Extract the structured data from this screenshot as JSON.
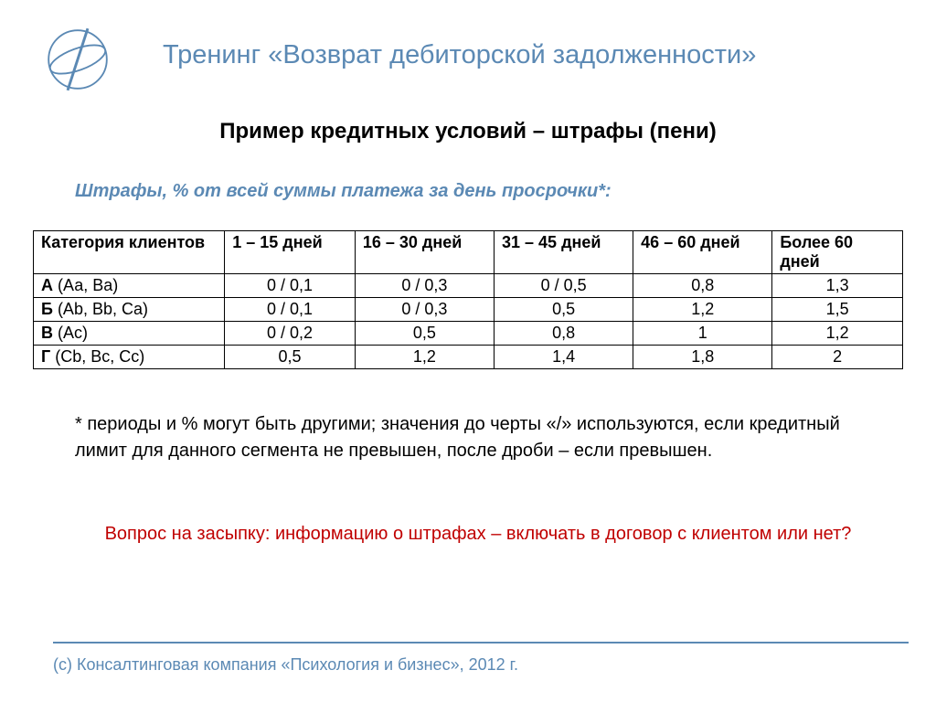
{
  "colors": {
    "title": "#5b89b4",
    "subtitle": "#000000",
    "caption": "#5b89b4",
    "body": "#000000",
    "question": "#c00000",
    "divider": "#5b89b4",
    "copyright": "#5b89b4",
    "logo_stroke": "#5b89b4",
    "border": "#000000",
    "background": "#ffffff"
  },
  "typography": {
    "title_size": 29,
    "subtitle_size": 24,
    "caption_size": 20,
    "table_size": 18,
    "body_size": 20,
    "copyright_size": 18,
    "family": "Arial"
  },
  "header": {
    "title": "Тренинг «Возврат дебиторской задолженности»",
    "subtitle": "Пример кредитных условий – штрафы (пени)"
  },
  "table": {
    "type": "table",
    "caption": "Штрафы, % от всей суммы платежа за день просрочки*:",
    "columns": [
      "Категория клиентов",
      "1 – 15 дней",
      "16 – 30 дней",
      "31 – 45 дней",
      "46 – 60 дней",
      "Более 60 дней"
    ],
    "col_widths_pct": [
      22,
      15,
      16,
      16,
      16,
      15
    ],
    "rows": [
      {
        "lead": "А",
        "rest": " (Аа, Ва)",
        "cells": [
          "0 / 0,1",
          "0 / 0,3",
          "0 / 0,5",
          "0,8",
          "1,3"
        ]
      },
      {
        "lead": "Б",
        "rest": " (Аb, Bb, Ca)",
        "cells": [
          "0 / 0,1",
          "0 / 0,3",
          "0,5",
          "1,2",
          "1,5"
        ]
      },
      {
        "lead": "В",
        "rest": " (Ас)",
        "cells": [
          "0 / 0,2",
          "0,5",
          "0,8",
          "1",
          "1,2"
        ]
      },
      {
        "lead": "Г",
        "rest": " (Cb, Bc, Cc)",
        "cells": [
          "0,5",
          "1,2",
          "1,4",
          "1,8",
          "2"
        ]
      }
    ]
  },
  "footnote": "* периоды и % могут быть другими; значения до черты «/» используются, если кредитный лимит для данного сегмента не превышен, после дроби – если превышен.",
  "question": "Вопрос на засыпку:  информацию о штрафах – включать в договор с клиентом или нет?",
  "copyright": "(с) Консалтинговая компания «Психология и бизнес», 2012 г."
}
